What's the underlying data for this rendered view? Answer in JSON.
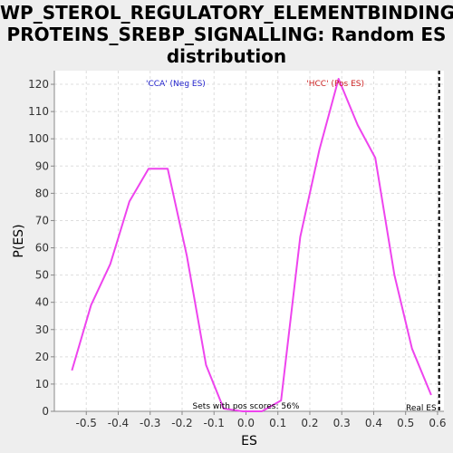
{
  "title_lines": [
    "WP_STEROL_REGULATORY_ELEMENTBINDING_",
    "PROTEINS_SREBP_SIGNALLING: Random ES",
    "distribution"
  ],
  "colors": {
    "line": "#ee44ee",
    "neg": "#2222cc",
    "pos": "#cc2222",
    "grid": "#dddddd",
    "plot_bg": "#ffffff",
    "page_bg": "#eeeeee"
  },
  "chart_data": {
    "type": "line",
    "title": "WP_STEROL_REGULATORY_ELEMENTBINDING_PROTEINS_SREBP_SIGNALLING: Random ES distribution",
    "xlabel": "ES",
    "ylabel": "P(ES)",
    "xlim": [
      -0.6,
      0.62
    ],
    "ylim": [
      0,
      125
    ],
    "x_ticks": [
      -0.5,
      -0.4,
      -0.3,
      -0.2,
      -0.1,
      0.0,
      0.1,
      0.2,
      0.3,
      0.4,
      0.5,
      0.6
    ],
    "x_tick_labels": [
      "-0.5",
      "-0.4",
      "-0.3",
      "-0.2",
      "-0.1",
      "0.0",
      "0.1",
      "0.2",
      "0.3",
      "0.4",
      "0.5",
      "0.6"
    ],
    "y_ticks": [
      0,
      10,
      20,
      30,
      40,
      50,
      60,
      70,
      80,
      90,
      100,
      110,
      120
    ],
    "y_tick_labels": [
      "0",
      "10",
      "20",
      "30",
      "40",
      "50",
      "60",
      "70",
      "80",
      "90",
      "100",
      "110",
      "120"
    ],
    "grid": true,
    "series": [
      {
        "x": [
          -0.545,
          -0.485,
          -0.425,
          -0.365,
          -0.305,
          -0.245,
          -0.185,
          -0.125,
          -0.07,
          -0.01,
          0.05,
          0.11,
          0.17,
          0.23,
          0.29,
          0.35,
          0.405,
          0.465,
          0.52,
          0.58
        ],
        "y": [
          15,
          39,
          54,
          77,
          89,
          89,
          57,
          17,
          1,
          0,
          0,
          4,
          64,
          96,
          122,
          105,
          93,
          50,
          23,
          6
        ]
      }
    ],
    "real_es": 0.605,
    "annotations": {
      "neg": "'CCA' (Neg ES)",
      "pos": "'HCC' (Pos ES)",
      "pos_scores": "Sets with pos scores: 56%",
      "real_es": "Real ES"
    }
  }
}
